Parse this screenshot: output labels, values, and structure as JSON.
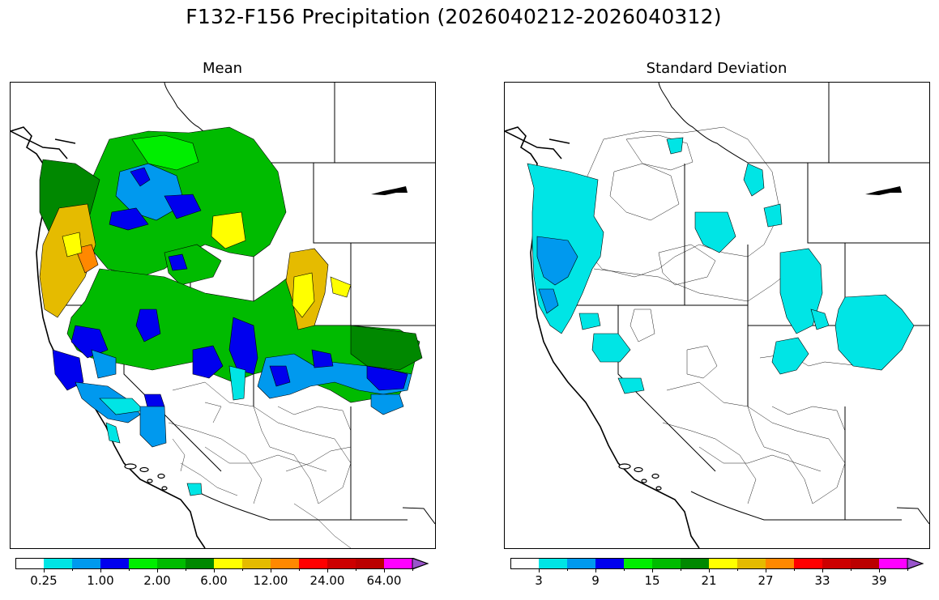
{
  "title": "F132-F156 Precipitation (2026040212-2026040312)",
  "panels": [
    {
      "id": "mean",
      "title": "Mean",
      "colorbar": {
        "colors": [
          "#ffffff",
          "#00e5e5",
          "#0099ee",
          "#0000ee",
          "#00ee00",
          "#00bb00",
          "#008800",
          "#ffff00",
          "#e5bb00",
          "#ff8800",
          "#ff0000",
          "#cc0000",
          "#bb0000",
          "#ff00ff",
          "#9955cc"
        ],
        "tick_labels": [
          "0.25",
          "1.00",
          "2.00",
          "6.00",
          "12.00",
          "24.00",
          "64.00"
        ],
        "extend": "max"
      }
    },
    {
      "id": "stddev",
      "title": "Standard Deviation",
      "colorbar": {
        "colors": [
          "#ffffff",
          "#00e5e5",
          "#0099ee",
          "#0000ee",
          "#00ee00",
          "#00bb00",
          "#008800",
          "#ffff00",
          "#e5bb00",
          "#ff8800",
          "#ff0000",
          "#cc0000",
          "#bb0000",
          "#ff00ff",
          "#9955cc"
        ],
        "tick_labels": [
          "3",
          "9",
          "15",
          "21",
          "27",
          "33",
          "39"
        ],
        "extend": "max"
      }
    }
  ],
  "legend_colors": {
    "land_none": "#ffffff",
    "outline": "#000000"
  }
}
